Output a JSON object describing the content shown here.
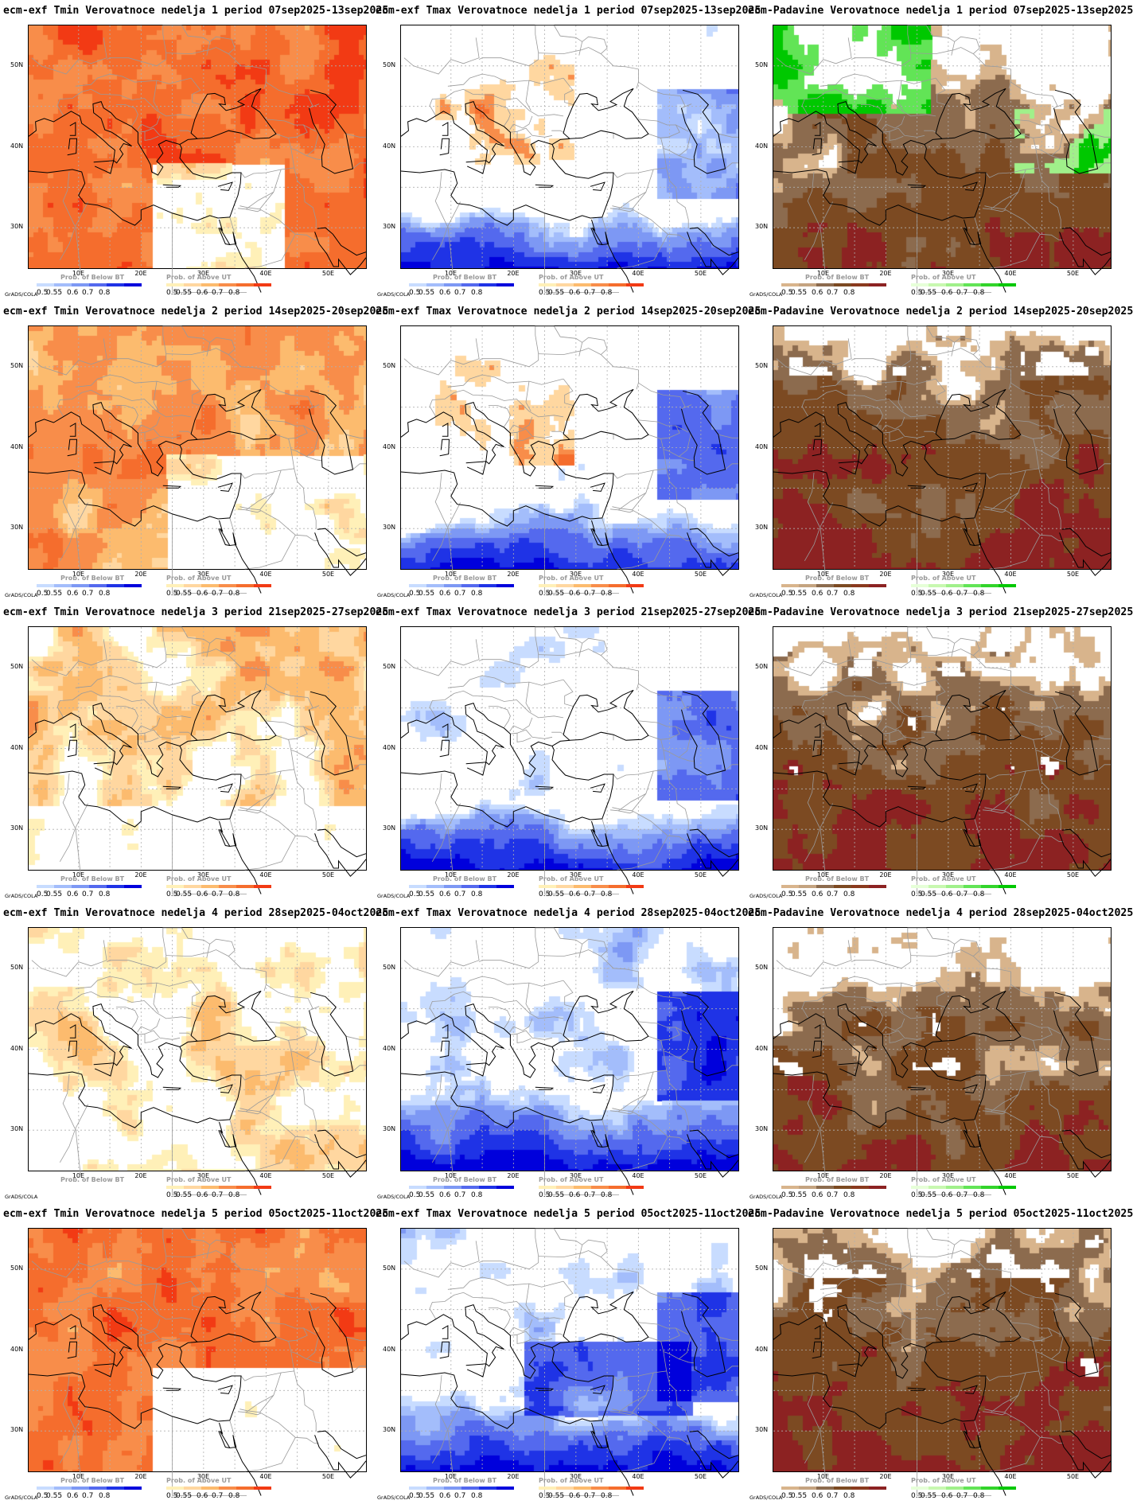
{
  "tool_label": "GrADS/COLA",
  "lat_labels": [
    "50N",
    "40N",
    "30N"
  ],
  "lon_labels": [
    "10E",
    "20E",
    "30E",
    "40E",
    "50E"
  ],
  "legend_values": [
    "0.5",
    "0.55",
    "0.6",
    "0.7",
    "0.8"
  ],
  "legend_titles": {
    "below": "Prob. of Below BT",
    "above": "Prob. of Above UT"
  },
  "colors": {
    "temp_below": [
      "#c8dcff",
      "#a3bdfb",
      "#7d98f4",
      "#5469ee",
      "#1f33e6",
      "#0000dc"
    ],
    "temp_above": [
      "#fff0b8",
      "#ffd7a0",
      "#fcbb6e",
      "#f88d4a",
      "#f56d2d",
      "#f23a14"
    ],
    "prec_below": [
      "#d8b48c",
      "#c4a380",
      "#8c6b4e",
      "#7c4a22",
      "#8a3a1e",
      "#8c2222"
    ],
    "prec_above": [
      "#e6ffd8",
      "#c8f8b0",
      "#a0f08a",
      "#62e456",
      "#32d42a",
      "#00c800"
    ]
  },
  "panels": [
    {
      "title": "ecm-exf Tmin Verovatnoce nedelja 1 period 07sep2025-13sep2025",
      "kind": "tmin",
      "week": 1
    },
    {
      "title": "ecm-exf Tmax Verovatnoce nedelja 1 period 07sep2025-13sep2025",
      "kind": "tmax",
      "week": 1
    },
    {
      "title": "ecm-Padavine Verovatnoce nedelja 1 period 07sep2025-13sep2025",
      "kind": "prec",
      "week": 1
    },
    {
      "title": "ecm-exf Tmin Verovatnoce nedelja 2 period 14sep2025-20sep2025",
      "kind": "tmin",
      "week": 2
    },
    {
      "title": "ecm-exf Tmax Verovatnoce nedelja 2 period 14sep2025-20sep2025",
      "kind": "tmax",
      "week": 2
    },
    {
      "title": "ecm-Padavine Verovatnoce nedelja 2 period 14sep2025-20sep2025",
      "kind": "prec",
      "week": 2
    },
    {
      "title": "ecm-exf Tmin Verovatnoce nedelja 3 period 21sep2025-27sep2025",
      "kind": "tmin",
      "week": 3
    },
    {
      "title": "ecm-exf Tmax Verovatnoce nedelja 3 period 21sep2025-27sep2025",
      "kind": "tmax",
      "week": 3
    },
    {
      "title": "ecm-Padavine Verovatnoce nedelja 3 period 21sep2025-27sep2025",
      "kind": "prec",
      "week": 3
    },
    {
      "title": "ecm-exf Tmin Verovatnoce nedelja 4 period 28sep2025-04oct2025",
      "kind": "tmin",
      "week": 4
    },
    {
      "title": "ecm-exf Tmax Verovatnoce nedelja 4 period 28sep2025-04oct2025",
      "kind": "tmax",
      "week": 4
    },
    {
      "title": "ecm-Padavine Verovatnoce nedelja 4 period 28sep2025-04oct2025",
      "kind": "prec",
      "week": 4
    },
    {
      "title": "ecm-exf Tmin Verovatnoce nedelja 5 period 05oct2025-11oct2025",
      "kind": "tmin",
      "week": 5
    },
    {
      "title": "ecm-exf Tmax Verovatnoce nedelja 5 period 05oct2025-11oct2025",
      "kind": "tmax",
      "week": 5
    },
    {
      "title": "ecm-Padavine Verovatnoce nedelja 5 period 05oct2025-11oct2025",
      "kind": "prec",
      "week": 5
    }
  ]
}
